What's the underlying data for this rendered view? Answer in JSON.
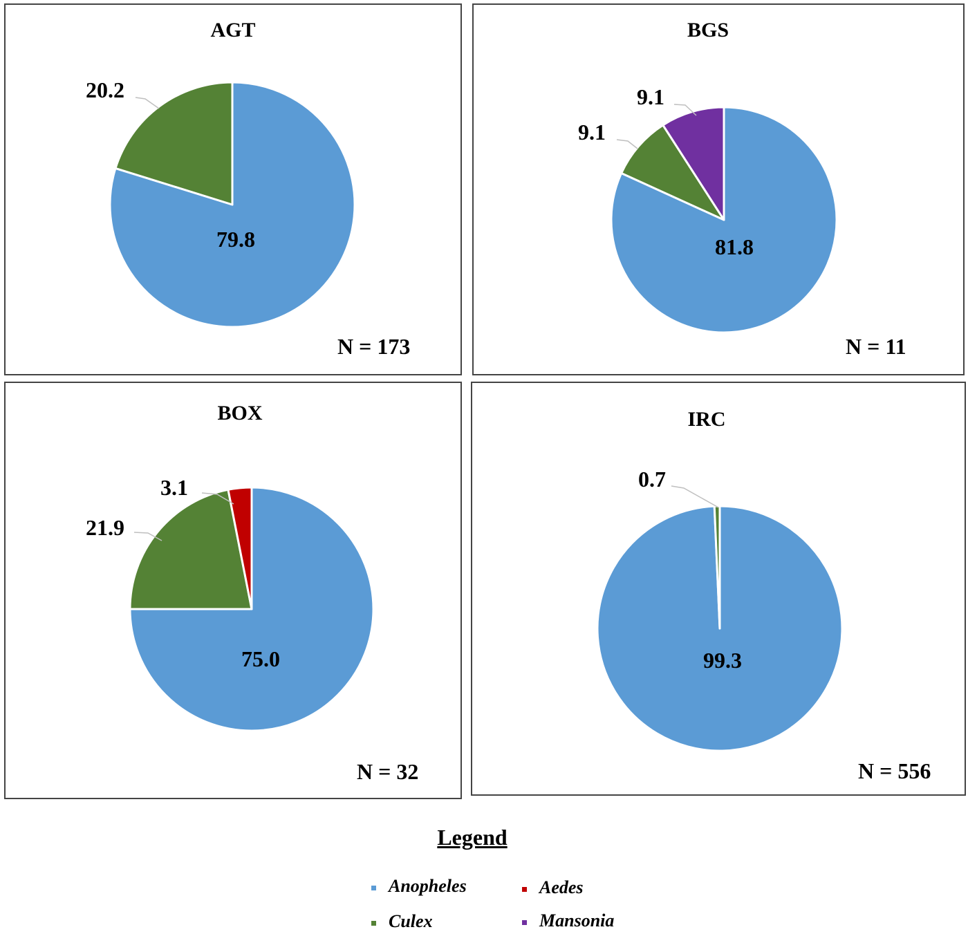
{
  "chart_data": [
    {
      "type": "pie",
      "title": "AGT",
      "sample_size": "N = 173",
      "slices": [
        {
          "series": "Anopheles",
          "value": 79.8,
          "label": "79.8"
        },
        {
          "series": "Culex",
          "value": 20.2,
          "label": "20.2"
        }
      ]
    },
    {
      "type": "pie",
      "title": "BGS",
      "sample_size": "N = 11",
      "slices": [
        {
          "series": "Anopheles",
          "value": 81.8,
          "label": "81.8"
        },
        {
          "series": "Culex",
          "value": 9.1,
          "label": "9.1"
        },
        {
          "series": "Mansonia",
          "value": 9.1,
          "label": "9.1"
        }
      ]
    },
    {
      "type": "pie",
      "title": "BOX",
      "sample_size": "N = 32",
      "slices": [
        {
          "series": "Anopheles",
          "value": 75.0,
          "label": "75.0"
        },
        {
          "series": "Culex",
          "value": 21.9,
          "label": "21.9"
        },
        {
          "series": "Aedes",
          "value": 3.1,
          "label": "3.1"
        }
      ]
    },
    {
      "type": "pie",
      "title": "IRC",
      "sample_size": "N = 556",
      "slices": [
        {
          "series": "Anopheles",
          "value": 99.3,
          "label": "99.3"
        },
        {
          "series": "Culex",
          "value": 0.7,
          "label": "0.7"
        }
      ]
    }
  ],
  "legend": {
    "title": "Legend",
    "items": [
      {
        "name": "Anopheles",
        "color": "#5b9bd5"
      },
      {
        "name": "Aedes",
        "color": "#c00000"
      },
      {
        "name": "Culex",
        "color": "#548235"
      },
      {
        "name": "Mansonia",
        "color": "#7030a0"
      }
    ]
  }
}
